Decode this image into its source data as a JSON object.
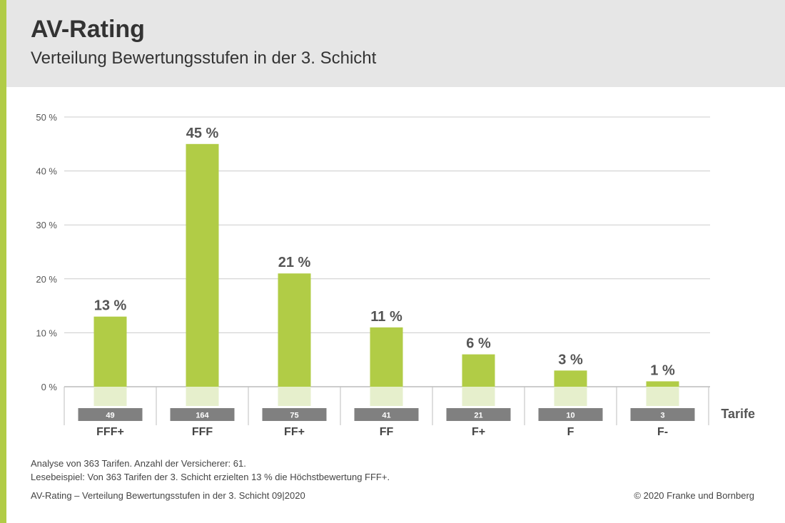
{
  "header": {
    "title": "AV-Rating",
    "subtitle": "Verteilung Bewertungsstufen in der 3. Schicht"
  },
  "colors": {
    "accent": "#b1cc46",
    "bar": "#b1cc46",
    "bar_ghost": "#e6efcc",
    "badge": "#808080",
    "header_bg": "#e6e6e6"
  },
  "chart_data": {
    "type": "bar",
    "categories": [
      "FFF+",
      "FFF",
      "FF+",
      "FF",
      "F+",
      "F",
      "F-"
    ],
    "values": [
      13,
      45,
      21,
      11,
      6,
      3,
      1
    ],
    "data_labels": [
      "13 %",
      "45 %",
      "21 %",
      "11 %",
      "6 %",
      "3 %",
      "1 %"
    ],
    "tarife_counts": [
      "49",
      "164",
      "75",
      "41",
      "21",
      "10",
      "3"
    ],
    "tarife_label": "Tarife",
    "ylim": [
      0,
      50
    ],
    "yticks": [
      0,
      10,
      20,
      30,
      40,
      50
    ],
    "ytick_labels": [
      "0 %",
      "10 %",
      "20 %",
      "30 %",
      "40 %",
      "50 %"
    ],
    "grid": true
  },
  "notes": {
    "line1": "Analyse von 363 Tarifen. Anzahl der Versicherer: 61.",
    "line2": "Lesebeispiel: Von 363 Tarifen der 3. Schicht erzielten 13 % die Höchstbewertung FFF+."
  },
  "footer": {
    "left": "AV-Rating – Verteilung Bewertungsstufen in der 3. Schicht 09|2020",
    "right": "© 2020 Franke und Bornberg"
  }
}
